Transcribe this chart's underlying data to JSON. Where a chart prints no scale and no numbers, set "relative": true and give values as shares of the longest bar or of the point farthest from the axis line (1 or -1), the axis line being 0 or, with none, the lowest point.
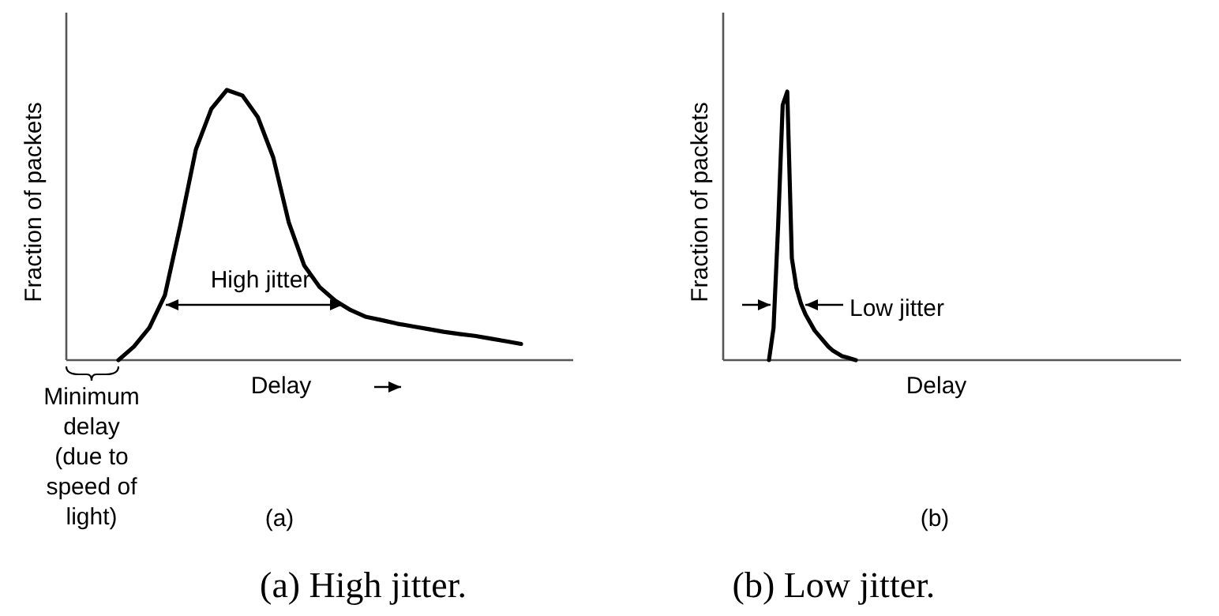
{
  "chart_data": [
    {
      "type": "line",
      "title": "(a) High jitter.",
      "xlabel": "Delay",
      "ylabel": "Fraction of packets",
      "relative": true,
      "categories": [
        null,
        null,
        null,
        null,
        null,
        null,
        null,
        null,
        null,
        null,
        null,
        null,
        null,
        null,
        null,
        null,
        null,
        null,
        null,
        null,
        null,
        null,
        null,
        null,
        null,
        null,
        null
      ],
      "series": [
        {
          "color": "#000000",
          "values": [
            0,
            0.05,
            0.12,
            0.24,
            0.5,
            0.78,
            0.93,
            1,
            0.98,
            0.9,
            0.75,
            0.51,
            0.35,
            0.27,
            0.22,
            0.185,
            0.16,
            0.148,
            0.135,
            0.125,
            0.115,
            0.105,
            0.097,
            0.09,
            0.08,
            0.07,
            0.06
          ]
        }
      ],
      "annotations": [
        "High jitter",
        "Minimum\ndelay\n(due to\nspeed of\nlight)",
        "(a)"
      ]
    },
    {
      "type": "line",
      "title": "(b) Low jitter.",
      "xlabel": "Delay",
      "ylabel": "Fraction of packets",
      "relative": true,
      "categories": [
        null,
        null,
        null,
        null,
        null,
        null,
        null,
        null,
        null,
        null,
        null,
        null,
        null,
        null,
        null,
        null,
        null,
        null,
        null,
        null
      ],
      "series": [
        {
          "color": "#000000",
          "values": [
            0,
            0.12,
            0.5,
            0.95,
            1,
            0.38,
            0.27,
            0.21,
            0.17,
            0.14,
            0.11,
            0.09,
            0.07,
            0.05,
            0.035,
            0.025,
            0.015,
            0.01,
            0.005,
            0
          ]
        }
      ],
      "annotations": [
        "Low jitter",
        "(b)"
      ]
    }
  ]
}
